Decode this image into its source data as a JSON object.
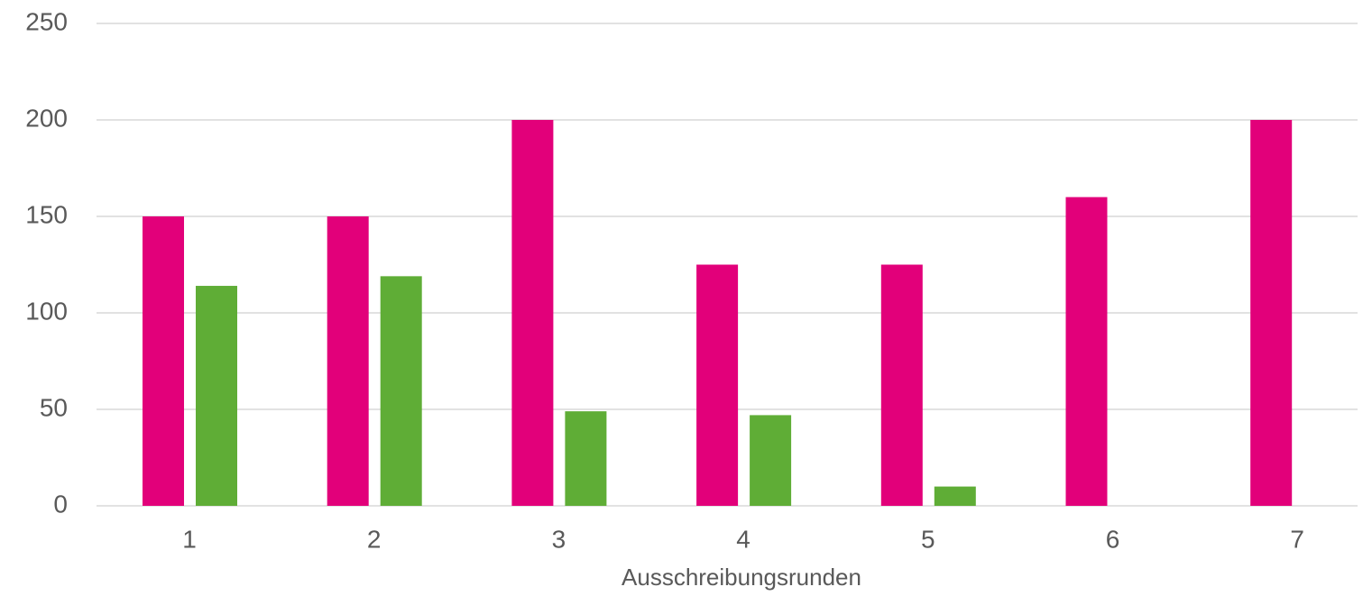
{
  "chart_data": {
    "type": "bar",
    "x_label": "Ausschreibungsrunden",
    "categories": [
      "1",
      "2",
      "3",
      "4",
      "5",
      "6",
      "7"
    ],
    "series": [
      {
        "color": "#e2007a",
        "values": [
          150,
          150,
          200,
          125,
          125,
          160,
          200
        ]
      },
      {
        "color": "#5fad36",
        "values": [
          114,
          119,
          49,
          47,
          10,
          null,
          null
        ]
      }
    ],
    "ylim": [
      0,
      250
    ],
    "yticks": [
      0,
      50,
      100,
      150,
      200,
      250
    ],
    "grid": true
  }
}
